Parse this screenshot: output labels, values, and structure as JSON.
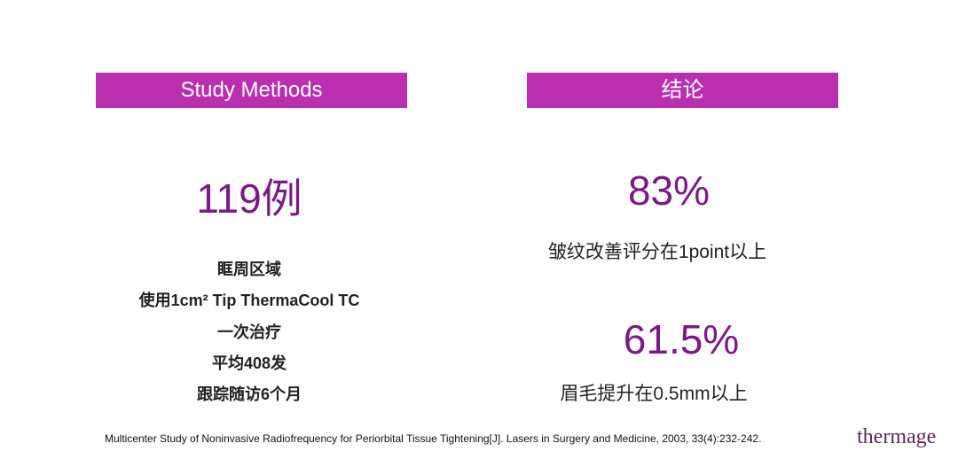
{
  "left": {
    "header": "Study Methods",
    "highlight": "119例",
    "lines": [
      "眶周区域",
      "使用1cm² Tip ThermaCool TC",
      "一次治疗",
      "平均408发",
      "跟踪随访6个月"
    ]
  },
  "right": {
    "header": "结论",
    "results": [
      {
        "value": "83%",
        "description": "皱纹改善评分在1point以上"
      },
      {
        "value": "61.5%",
        "description": "眉毛提升在0.5mm以上"
      }
    ]
  },
  "footer": {
    "citation": "Multicenter Study of Noninvasive Radiofrequency for Periorbital Tissue Tightening[J]. Lasers in Surgery and Medicine, 2003, 33(4):232-242.",
    "logo": "thermage"
  }
}
